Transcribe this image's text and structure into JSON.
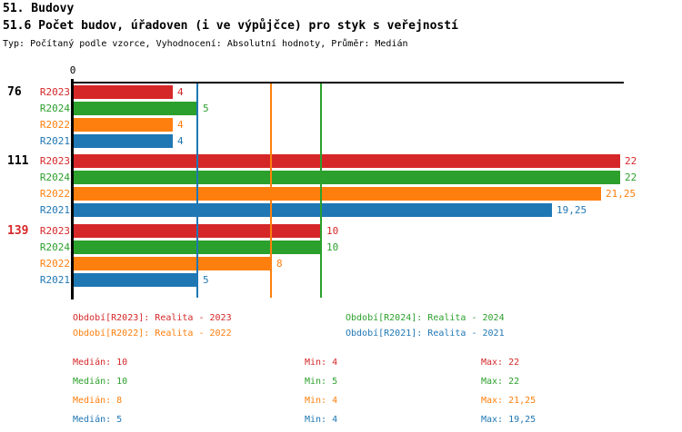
{
  "header": {
    "title": "51. Budovy",
    "subtitle": "51.6 Počet budov, úřadoven (i ve výpůjčce) pro styk s veřejností",
    "meta": "Typ: Počítaný podle vzorce, Vyhodnocení: Absolutní hodnoty, Průměr: Medián"
  },
  "colors": {
    "R2023": "#d62728",
    "R2024": "#2ca02c",
    "R2022": "#ff7f0e",
    "R2021": "#1f77b4",
    "axis": "#000000",
    "group_label_default": "#000000",
    "group_label_highlight": "#d62728"
  },
  "chart_data": {
    "type": "bar",
    "orientation": "horizontal",
    "x_axis": {
      "zero_label": "0",
      "min": 0,
      "max_shown_value": 22,
      "grid": "median-lines"
    },
    "series_order": [
      "R2023",
      "R2024",
      "R2022",
      "R2021"
    ],
    "groups": [
      {
        "label": "76",
        "label_color": "#000000",
        "bars": [
          {
            "series": "R2023",
            "value": 4,
            "display": "4"
          },
          {
            "series": "R2024",
            "value": 5,
            "display": "5"
          },
          {
            "series": "R2022",
            "value": 4,
            "display": "4"
          },
          {
            "series": "R2021",
            "value": 4,
            "display": "4"
          }
        ]
      },
      {
        "label": "111",
        "label_color": "#000000",
        "bars": [
          {
            "series": "R2023",
            "value": 22,
            "display": "22"
          },
          {
            "series": "R2024",
            "value": 22,
            "display": "22"
          },
          {
            "series": "R2022",
            "value": 21.25,
            "display": "21,25"
          },
          {
            "series": "R2021",
            "value": 19.25,
            "display": "19,25"
          }
        ]
      },
      {
        "label": "139",
        "label_color": "#d62728",
        "bars": [
          {
            "series": "R2023",
            "value": 10,
            "display": "10"
          },
          {
            "series": "R2024",
            "value": 10,
            "display": "10"
          },
          {
            "series": "R2022",
            "value": 8,
            "display": "8"
          },
          {
            "series": "R2021",
            "value": 5,
            "display": "5"
          }
        ]
      }
    ],
    "median_gridlines": [
      {
        "series": "R2021",
        "value": 5
      },
      {
        "series": "R2022",
        "value": 8
      },
      {
        "series": "R2024",
        "value": 10
      }
    ]
  },
  "legend": {
    "items": [
      {
        "series": "R2023",
        "label": "Období[R2023]: Realita - 2023"
      },
      {
        "series": "R2024",
        "label": "Období[R2024]: Realita - 2024"
      },
      {
        "series": "R2022",
        "label": "Období[R2022]: Realita - 2022"
      },
      {
        "series": "R2021",
        "label": "Období[R2021]: Realita - 2021"
      }
    ]
  },
  "stats": {
    "rows": [
      {
        "series": "R2023",
        "median": "Medián: 10",
        "min": "Min: 4",
        "max": "Max: 22"
      },
      {
        "series": "R2024",
        "median": "Medián: 10",
        "min": "Min: 5",
        "max": "Max: 22"
      },
      {
        "series": "R2022",
        "median": "Medián: 8",
        "min": "Min: 4",
        "max": "Max: 21,25"
      },
      {
        "series": "R2021",
        "median": "Medián: 5",
        "min": "Min: 4",
        "max": "Max: 19,25"
      }
    ]
  }
}
